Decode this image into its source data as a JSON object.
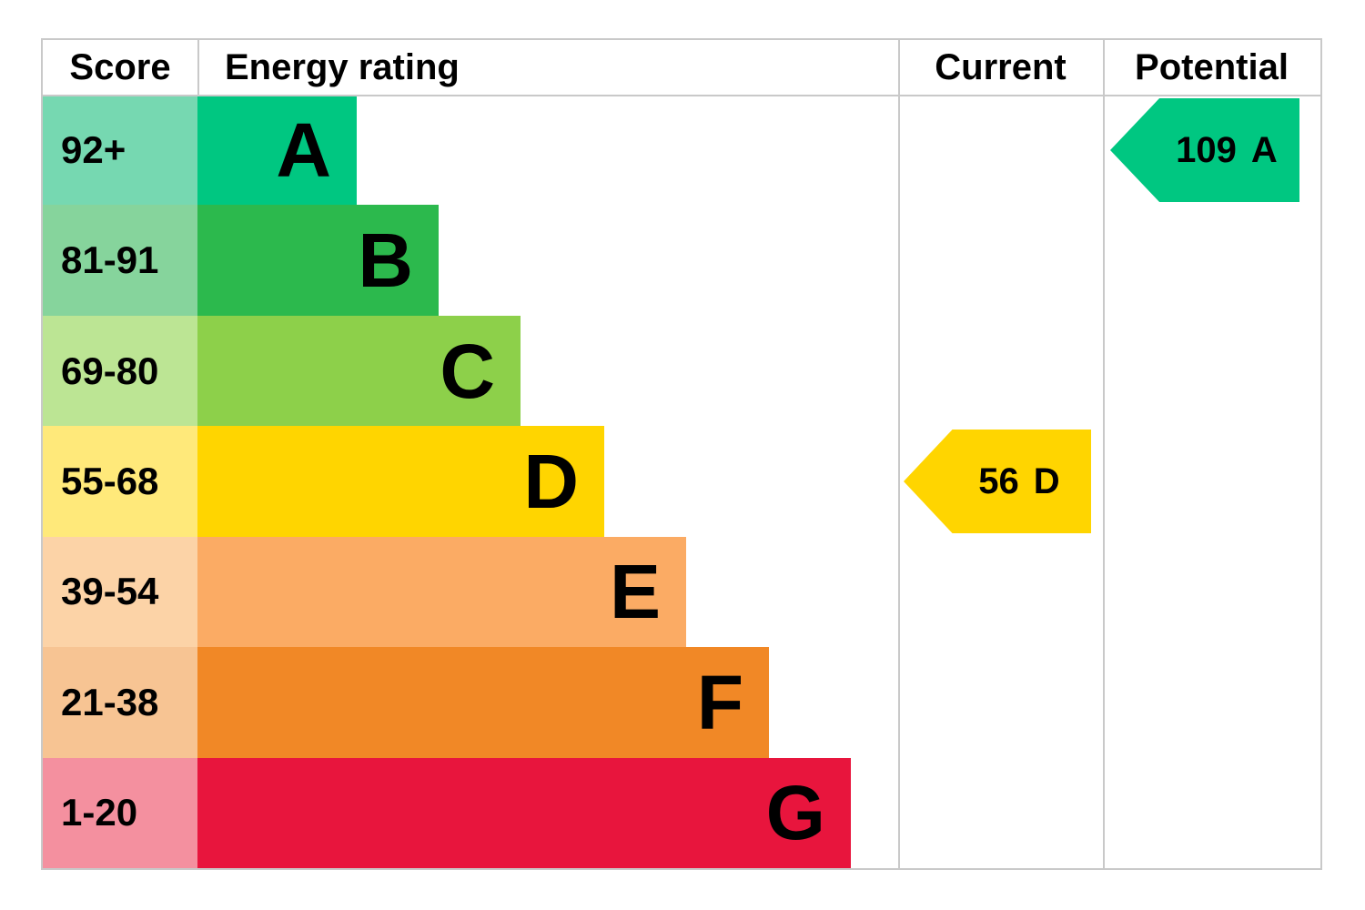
{
  "header": {
    "score": "Score",
    "energy_rating": "Energy rating",
    "current": "Current",
    "potential": "Potential"
  },
  "chart_data": {
    "type": "bar",
    "categories": [
      "A",
      "B",
      "C",
      "D",
      "E",
      "F",
      "G"
    ],
    "bands": [
      {
        "score": "92+",
        "letter": "A",
        "color": "#00c781",
        "tint": "#76d8b1"
      },
      {
        "score": "81-91",
        "letter": "B",
        "color": "#2cb94d",
        "tint": "#86d49c"
      },
      {
        "score": "69-80",
        "letter": "C",
        "color": "#8dd04a",
        "tint": "#bce594"
      },
      {
        "score": "55-68",
        "letter": "D",
        "color": "#ffd500",
        "tint": "#ffe97a"
      },
      {
        "score": "39-54",
        "letter": "E",
        "color": "#fbab64",
        "tint": "#fcd3a7"
      },
      {
        "score": "21-38",
        "letter": "F",
        "color": "#f18826",
        "tint": "#f7c493"
      },
      {
        "score": "1-20",
        "letter": "G",
        "color": "#e8153d",
        "tint": "#f4909f"
      }
    ],
    "current": {
      "value": "56",
      "letter": "D",
      "color": "#ffd500"
    },
    "potential": {
      "value": "109",
      "letter": "A",
      "color": "#00c781"
    }
  }
}
